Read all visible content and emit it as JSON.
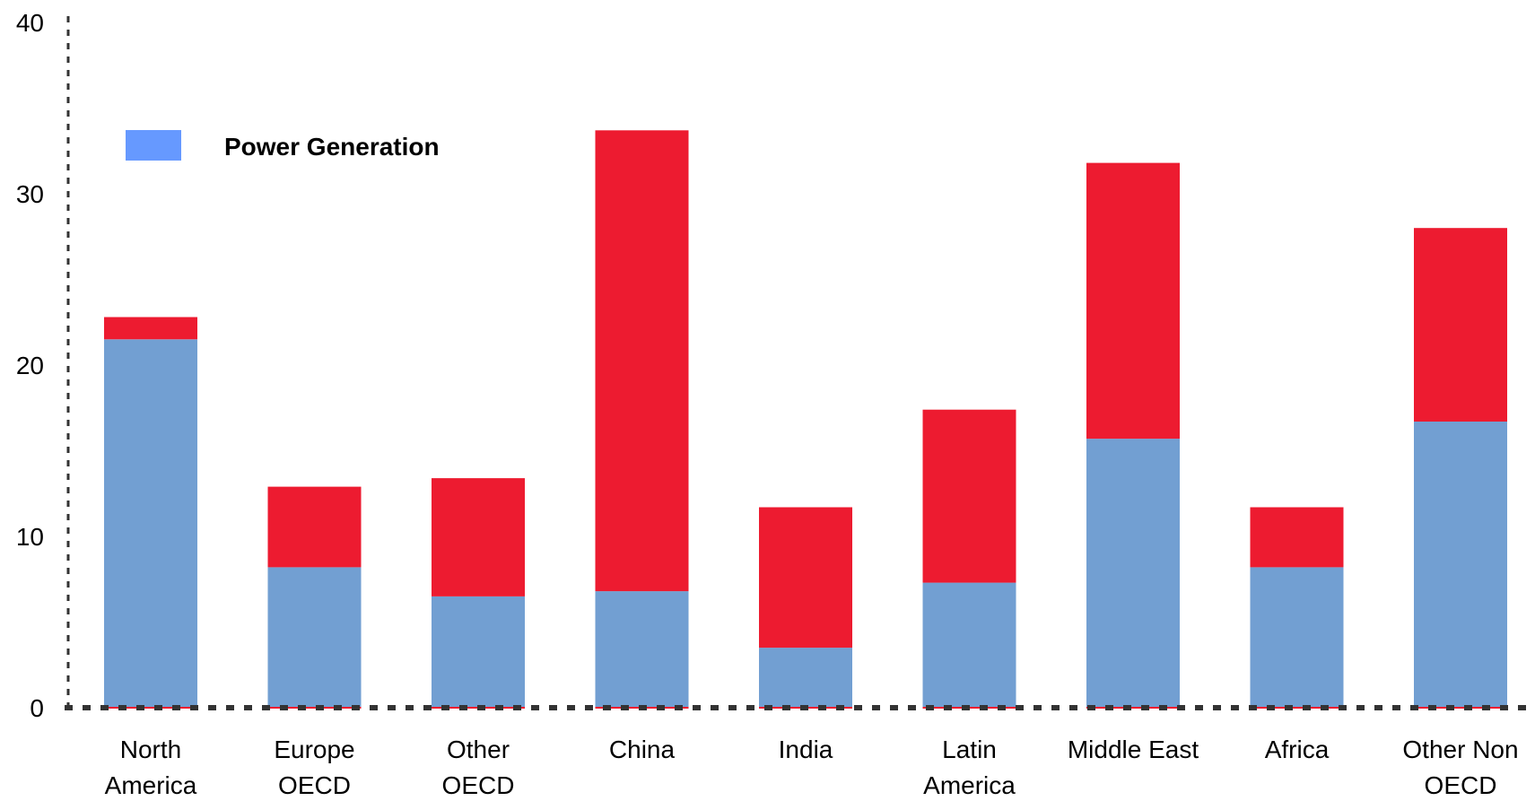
{
  "chart_data": {
    "type": "bar",
    "stacked": true,
    "categories": [
      [
        "North",
        "America"
      ],
      [
        "Europe",
        "OECD"
      ],
      [
        "Other",
        "OECD"
      ],
      [
        "China"
      ],
      [
        "India"
      ],
      [
        "Latin",
        "America"
      ],
      [
        "Middle East"
      ],
      [
        "Africa"
      ],
      [
        "Other Non",
        "OECD"
      ]
    ],
    "series": [
      {
        "name": "Power Generation",
        "color": "#729FD2",
        "values": [
          21.5,
          8.2,
          6.5,
          6.8,
          3.5,
          7.3,
          15.7,
          8.2,
          16.7
        ]
      },
      {
        "color": "#ED1B30",
        "values": [
          1.3,
          4.7,
          6.9,
          26.9,
          8.2,
          10.1,
          16.1,
          3.5,
          11.3
        ]
      }
    ],
    "legend": {
      "label": "Power Generation",
      "swatch_color": "#6699FF",
      "position": "top-left"
    },
    "y_ticks": [
      "0",
      "10",
      "20",
      "30",
      "40"
    ],
    "ylim": [
      0,
      40
    ],
    "grid": false,
    "title": "",
    "xlabel": "",
    "ylabel": ""
  }
}
